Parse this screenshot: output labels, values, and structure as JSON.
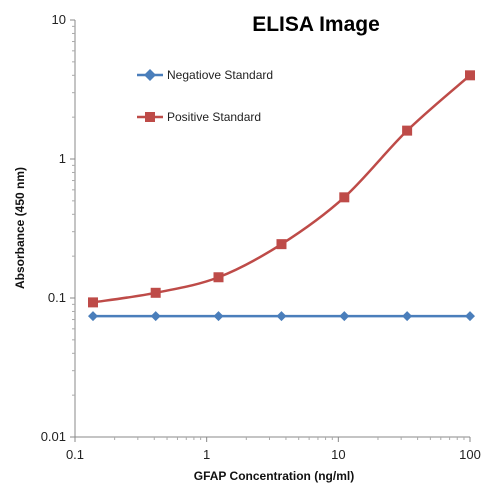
{
  "chart_data": {
    "type": "line",
    "title": "ELISA Image",
    "xlabel": "GFAP Concentration (ng/ml)",
    "ylabel": "Absorbance (450 nm)",
    "x_scale": "log",
    "y_scale": "log",
    "xlim": [
      0.1,
      100
    ],
    "ylim": [
      0.01,
      10
    ],
    "x_ticks": [
      0.1,
      1,
      10,
      100
    ],
    "x_tick_labels": [
      "0.1",
      "1",
      "10",
      "100"
    ],
    "y_ticks": [
      0.01,
      0.1,
      1,
      10
    ],
    "y_tick_labels": [
      "0.01",
      "0.1",
      "1",
      "10"
    ],
    "grid": false,
    "legend_position": "top-left",
    "x": [
      0.137,
      0.41,
      1.23,
      3.7,
      11.1,
      33.3,
      100
    ],
    "series": [
      {
        "name": "Negatiove Standard",
        "color": "#4a7ebb",
        "marker": "diamond",
        "values": [
          0.074,
          0.074,
          0.074,
          0.074,
          0.074,
          0.074,
          0.074
        ]
      },
      {
        "name": "Positive Standard",
        "color": "#be4b48",
        "marker": "square",
        "values": [
          0.093,
          0.109,
          0.141,
          0.244,
          0.53,
          1.6,
          4.0
        ]
      }
    ]
  }
}
